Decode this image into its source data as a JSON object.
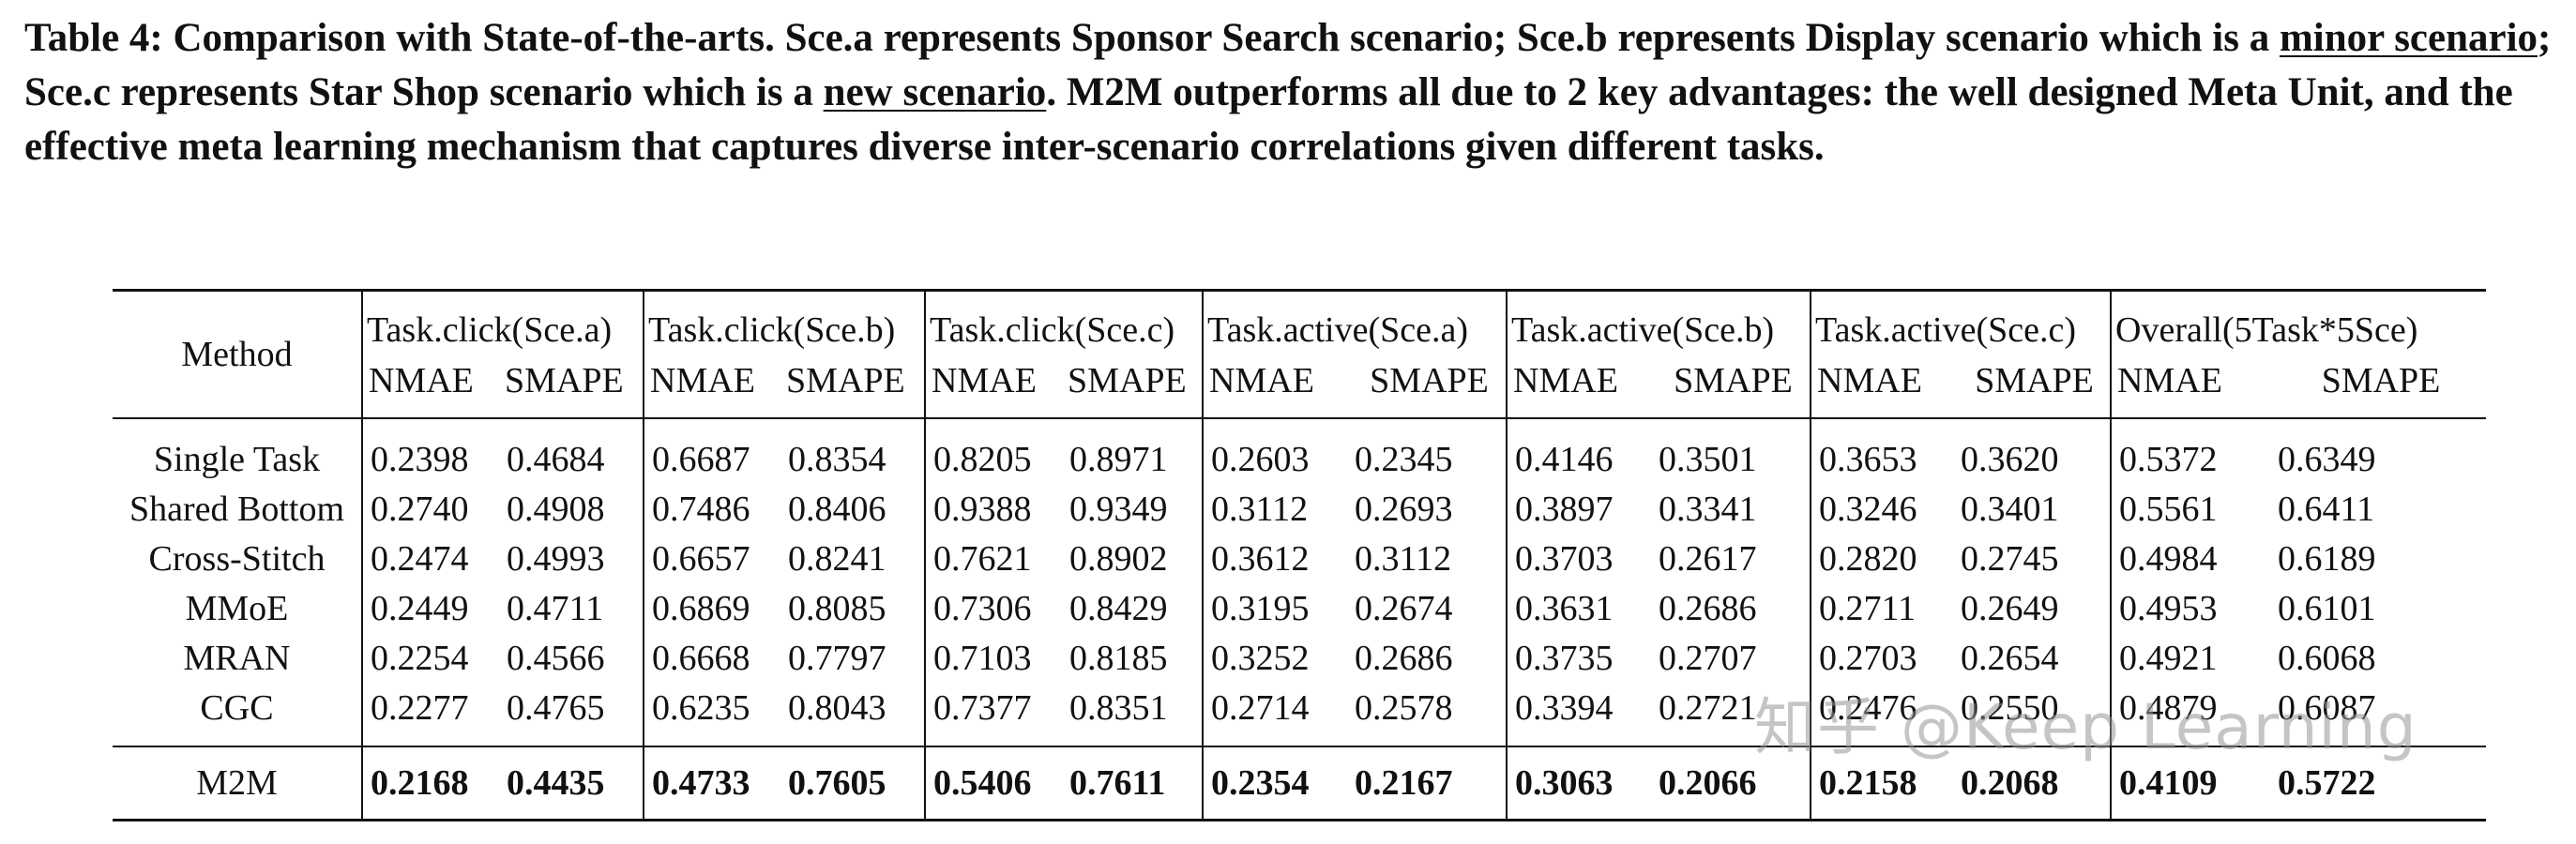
{
  "caption": {
    "part1": "Table 4: Comparison with State-of-the-arts. Sce.a represents Sponsor Search scenario; Sce.b represents Display scenario which is a ",
    "u1": "minor scenario",
    "part2": "; Sce.c represents Star Shop scenario which is a ",
    "u2": "new scenario",
    "part3": ". M2M outperforms all due to 2 key advantages: the well designed Meta Unit, and the effective meta learning mechanism that captures diverse inter-scenario correlations given different tasks."
  },
  "table": {
    "method_header": "Method",
    "groups": [
      "Task.click(Sce.a)",
      "Task.click(Sce.b)",
      "Task.click(Sce.c)",
      "Task.active(Sce.a)",
      "Task.active(Sce.b)",
      "Task.active(Sce.c)",
      "Overall(5Task*5Sce)"
    ],
    "metrics": [
      "NMAE",
      "SMAPE"
    ],
    "rows": [
      {
        "method": "Single Task",
        "values": [
          "0.2398",
          "0.4684",
          "0.6687",
          "0.8354",
          "0.8205",
          "0.8971",
          "0.2603",
          "0.2345",
          "0.4146",
          "0.3501",
          "0.3653",
          "0.3620",
          "0.5372",
          "0.6349"
        ]
      },
      {
        "method": "Shared Bottom",
        "values": [
          "0.2740",
          "0.4908",
          "0.7486",
          "0.8406",
          "0.9388",
          "0.9349",
          "0.3112",
          "0.2693",
          "0.3897",
          "0.3341",
          "0.3246",
          "0.3401",
          "0.5561",
          "0.6411"
        ]
      },
      {
        "method": "Cross-Stitch",
        "values": [
          "0.2474",
          "0.4993",
          "0.6657",
          "0.8241",
          "0.7621",
          "0.8902",
          "0.3612",
          "0.3112",
          "0.3703",
          "0.2617",
          "0.2820",
          "0.2745",
          "0.4984",
          "0.6189"
        ]
      },
      {
        "method": "MMoE",
        "values": [
          "0.2449",
          "0.4711",
          "0.6869",
          "0.8085",
          "0.7306",
          "0.8429",
          "0.3195",
          "0.2674",
          "0.3631",
          "0.2686",
          "0.2711",
          "0.2649",
          "0.4953",
          "0.6101"
        ]
      },
      {
        "method": "MRAN",
        "values": [
          "0.2254",
          "0.4566",
          "0.6668",
          "0.7797",
          "0.7103",
          "0.8185",
          "0.3252",
          "0.2686",
          "0.3735",
          "0.2707",
          "0.2703",
          "0.2654",
          "0.4921",
          "0.6068"
        ]
      },
      {
        "method": "CGC",
        "values": [
          "0.2277",
          "0.4765",
          "0.6235",
          "0.8043",
          "0.7377",
          "0.8351",
          "0.2714",
          "0.2578",
          "0.3394",
          "0.2721",
          "0.2476",
          "0.2550",
          "0.4879",
          "0.6087"
        ]
      },
      {
        "method": "M2M",
        "values": [
          "0.2168",
          "0.4435",
          "0.4733",
          "0.7605",
          "0.5406",
          "0.7611",
          "0.2354",
          "0.2167",
          "0.3063",
          "0.2066",
          "0.2158",
          "0.2068",
          "0.4109",
          "0.5722"
        ]
      }
    ]
  },
  "watermark": "知乎 @Keep Learning"
}
